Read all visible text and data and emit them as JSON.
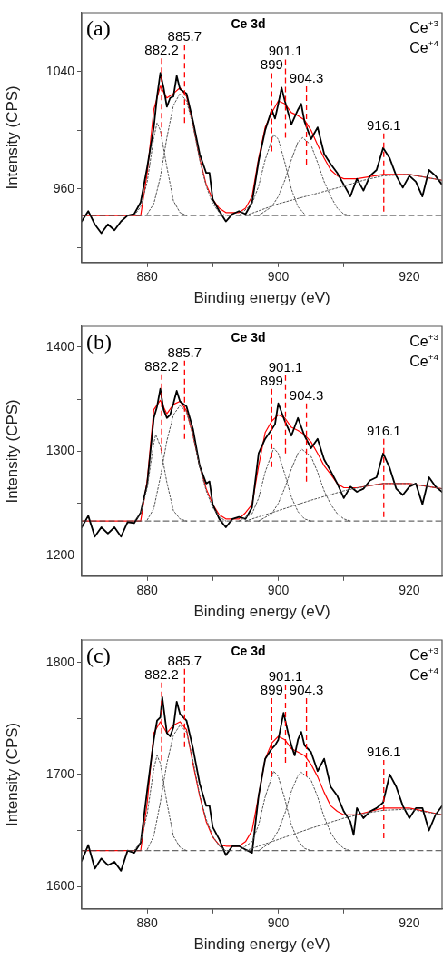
{
  "chart_data": [
    {
      "type": "line",
      "title": "Ce 3d",
      "xlabel": "Binding energy (eV)",
      "ylabel": "Intensity (CPS)",
      "annotations": [
        "(a)",
        "Ce$^{+3}$",
        "Ce$^{+4}$"
      ],
      "marker": "none",
      "xlim": [
        870,
        925
      ],
      "ylim": [
        910,
        1080
      ],
      "xticks": [
        {
          "value": 880,
          "label": "880"
        },
        {
          "value": 890,
          "label": null
        },
        {
          "value": 900,
          "label": "900"
        },
        {
          "value": 910,
          "label": null
        },
        {
          "value": 920,
          "label": "920"
        }
      ],
      "yticks": [
        {
          "value": 920,
          "label": null
        },
        960,
        {
          "value": 1000,
          "label": null
        },
        1040
      ],
      "ref_lines": [
        {
          "axis": "x",
          "value": 882.2,
          "label": "882.2",
          "color": "#ff0000",
          "line_style": "dashed"
        },
        {
          "axis": "x",
          "value": 885.7,
          "label": "885.7",
          "color": "#ff0000",
          "line_style": "dashed"
        },
        {
          "axis": "x",
          "value": 899,
          "label": "899",
          "color": "#ff0000",
          "line_style": "dashed"
        },
        {
          "axis": "x",
          "value": 901.1,
          "label": "901.1",
          "color": "#ff0000",
          "line_style": "dashed"
        },
        {
          "axis": "x",
          "value": 904.3,
          "label": "904.3",
          "color": "#ff0000",
          "line_style": "dashed"
        },
        {
          "axis": "x",
          "value": 916.1,
          "label": "916.1",
          "color": "#ff0000",
          "line_style": "dashed"
        }
      ],
      "series": [
        {
          "color": "#444444",
          "line_style": "dashed",
          "x": [
            870,
            925
          ],
          "values": [
            942,
            942
          ]
        },
        {
          "color": "#555555",
          "line_style": "dotted",
          "x": [
            878,
            879,
            880,
            881,
            881.5,
            882,
            883,
            884,
            885,
            886
          ],
          "values": [
            942,
            948,
            965,
            995,
            1005,
            1000,
            975,
            952,
            944,
            942
          ]
        },
        {
          "color": "#555555",
          "line_style": "dotted",
          "x": [
            880,
            881,
            882,
            883,
            884,
            885,
            886,
            887,
            888,
            889,
            890,
            891,
            892
          ],
          "values": [
            943,
            950,
            968,
            995,
            1017,
            1025,
            1020,
            1003,
            980,
            962,
            950,
            944,
            942
          ]
        },
        {
          "color": "#555555",
          "line_style": "dotted",
          "x": [
            894,
            896,
            897,
            898,
            899.3,
            900,
            901,
            902,
            903,
            904
          ],
          "values": [
            942,
            950,
            962,
            980,
            997,
            994,
            978,
            960,
            948,
            943
          ]
        },
        {
          "color": "#555555",
          "line_style": "dotted",
          "x": [
            897,
            899,
            900,
            901,
            902,
            903,
            903.7,
            905,
            906,
            907,
            908,
            909,
            910,
            911
          ],
          "values": [
            942,
            948,
            955,
            966,
            980,
            992,
            995,
            990,
            978,
            965,
            955,
            947,
            943,
            942
          ]
        },
        {
          "color": "#555555",
          "line_style": "dotted",
          "x": [
            895,
            900,
            905,
            910,
            913,
            916,
            920,
            925
          ],
          "values": [
            942,
            950,
            956,
            962,
            966,
            969,
            970,
            966
          ]
        },
        {
          "color": "#000000",
          "x": [
            870,
            871,
            872,
            873,
            874,
            875,
            876,
            877,
            878,
            879,
            880,
            881,
            881.5,
            882,
            882.5,
            883,
            883.5,
            884,
            884.5,
            885,
            886,
            887,
            888,
            889,
            889.5,
            890,
            891,
            892,
            893,
            894,
            895,
            896,
            897,
            898,
            899,
            899.5,
            900,
            900.5,
            901,
            902,
            903,
            903.5,
            904,
            905,
            906,
            907,
            908,
            909,
            910,
            911,
            912,
            913,
            914,
            915,
            916,
            917,
            918,
            919,
            920,
            921,
            922,
            923,
            924,
            925
          ],
          "values": [
            938,
            945,
            936,
            930,
            936,
            932,
            938,
            942,
            943,
            951,
            975,
            1002,
            1023,
            1039,
            1029,
            1016,
            1022,
            1023,
            1037,
            1028,
            1025,
            1006,
            984,
            971,
            971,
            953,
            945,
            938,
            943,
            945,
            943,
            951,
            979,
            1000,
            1014,
            1008,
            1018,
            1029,
            1020,
            1004,
            1014,
            1018,
            1006,
            994,
            1002,
            984,
            977,
            971,
            963,
            955,
            967,
            959,
            969,
            973,
            988,
            981,
            969,
            961,
            969,
            965,
            955,
            973,
            969,
            963
          ]
        },
        {
          "color": "#ff0000",
          "x": [
            870,
            879,
            880,
            881,
            882,
            883,
            884,
            885,
            886,
            887,
            888,
            889,
            890,
            891,
            892,
            894,
            895,
            896,
            897,
            898,
            899,
            900,
            901,
            902,
            903,
            904,
            905,
            906,
            907,
            908,
            909,
            910,
            912,
            916,
            920,
            925
          ],
          "values": [
            942,
            942,
            971,
            1014,
            1030,
            1022,
            1025,
            1029,
            1023,
            1004,
            981,
            963,
            953,
            947,
            944,
            944,
            947,
            955,
            981,
            1002,
            1012,
            1020,
            1018,
            1012,
            1010,
            1007,
            1000,
            990,
            981,
            973,
            969,
            967,
            967,
            970,
            970,
            966
          ]
        }
      ]
    },
    {
      "type": "line",
      "title": "Ce 3d",
      "xlabel": "Binding energy (eV)",
      "ylabel": "Intensity (CPS)",
      "annotations": [
        "(b)",
        "Ce$^{+3}$",
        "Ce$^{+4}$"
      ],
      "marker": "none",
      "xlim": [
        870,
        925
      ],
      "ylim": [
        1180,
        1420
      ],
      "xticks": [
        {
          "value": 880,
          "label": "880"
        },
        {
          "value": 890,
          "label": null
        },
        {
          "value": 900,
          "label": "900"
        },
        {
          "value": 910,
          "label": null
        },
        {
          "value": 920,
          "label": "920"
        }
      ],
      "yticks": [
        1200,
        {
          "value": 1250,
          "label": null
        },
        1300,
        {
          "value": 1350,
          "label": null
        },
        1400
      ],
      "ref_lines": [
        {
          "axis": "x",
          "value": 882.2,
          "label": "882.2",
          "color": "#ff0000",
          "line_style": "dashed"
        },
        {
          "axis": "x",
          "value": 885.7,
          "label": "885.7",
          "color": "#ff0000",
          "line_style": "dashed"
        },
        {
          "axis": "x",
          "value": 899,
          "label": "899",
          "color": "#ff0000",
          "line_style": "dashed"
        },
        {
          "axis": "x",
          "value": 901.1,
          "label": "901.1",
          "color": "#ff0000",
          "line_style": "dashed"
        },
        {
          "axis": "x",
          "value": 904.3,
          "label": "904.3",
          "color": "#ff0000",
          "line_style": "dashed"
        },
        {
          "axis": "x",
          "value": 916.1,
          "label": "916.1",
          "color": "#ff0000",
          "line_style": "dashed"
        }
      ],
      "series": [
        {
          "color": "#444444",
          "line_style": "dashed",
          "x": [
            870,
            925
          ],
          "values": [
            1233,
            1233
          ]
        },
        {
          "color": "#555555",
          "line_style": "dotted",
          "x": [
            878,
            879,
            880,
            881,
            881.3,
            882,
            883,
            884,
            885,
            886
          ],
          "values": [
            1233,
            1240,
            1265,
            1308,
            1316,
            1305,
            1270,
            1243,
            1235,
            1233
          ]
        },
        {
          "color": "#555555",
          "line_style": "dotted",
          "x": [
            880,
            881,
            882,
            883,
            884,
            885,
            886,
            887,
            888,
            889,
            890,
            891,
            892
          ],
          "values": [
            1234,
            1245,
            1275,
            1310,
            1335,
            1344,
            1338,
            1315,
            1285,
            1262,
            1246,
            1237,
            1233
          ]
        },
        {
          "color": "#555555",
          "line_style": "dotted",
          "x": [
            894,
            896,
            897,
            898,
            899.3,
            900,
            901,
            902,
            903,
            904,
            905
          ],
          "values": [
            1233,
            1240,
            1255,
            1280,
            1303,
            1298,
            1278,
            1256,
            1242,
            1235,
            1233
          ]
        },
        {
          "color": "#555555",
          "line_style": "dotted",
          "x": [
            897,
            899,
            900,
            901,
            902,
            903,
            903.6,
            905,
            906,
            907,
            908,
            909,
            910,
            911
          ],
          "values": [
            1233,
            1240,
            1250,
            1265,
            1283,
            1298,
            1302,
            1295,
            1280,
            1262,
            1249,
            1240,
            1235,
            1233
          ]
        },
        {
          "color": "#555555",
          "line_style": "dotted",
          "x": [
            895,
            900,
            905,
            910,
            913,
            916,
            920,
            925
          ],
          "values": [
            1233,
            1243,
            1253,
            1262,
            1266,
            1269,
            1269,
            1264
          ]
        },
        {
          "color": "#000000",
          "x": [
            870,
            871,
            872,
            873,
            874,
            875,
            876,
            877,
            878,
            879,
            880,
            881,
            881.5,
            882,
            882.5,
            883,
            883.5,
            884,
            884.5,
            885,
            886,
            887,
            888,
            889,
            889.5,
            890,
            891,
            892,
            893,
            894,
            895,
            896,
            897,
            898,
            899,
            899.5,
            900,
            901,
            902,
            903,
            904,
            905,
            906,
            907,
            908,
            909,
            910,
            911,
            912,
            913,
            914,
            915,
            916,
            917,
            918,
            919,
            920,
            921,
            922,
            923,
            924,
            925
          ],
          "values": [
            1227,
            1238,
            1218,
            1227,
            1221,
            1227,
            1218,
            1232,
            1231,
            1241,
            1269,
            1332,
            1343,
            1360,
            1340,
            1332,
            1335,
            1346,
            1358,
            1348,
            1343,
            1321,
            1286,
            1269,
            1271,
            1249,
            1235,
            1227,
            1235,
            1237,
            1235,
            1246,
            1298,
            1312,
            1321,
            1326,
            1346,
            1329,
            1315,
            1332,
            1315,
            1303,
            1312,
            1292,
            1281,
            1269,
            1255,
            1266,
            1261,
            1264,
            1272,
            1275,
            1298,
            1284,
            1264,
            1258,
            1266,
            1269,
            1249,
            1275,
            1266,
            1261
          ]
        },
        {
          "color": "#ff0000",
          "x": [
            870,
            879,
            880,
            881,
            882,
            883,
            884,
            885,
            886,
            887,
            888,
            889,
            890,
            891,
            892,
            894,
            895,
            896,
            897,
            898,
            899,
            900,
            901,
            902,
            903,
            904,
            905,
            906,
            907,
            908,
            909,
            910,
            912,
            916,
            920,
            925
          ],
          "values": [
            1233,
            1233,
            1272,
            1340,
            1349,
            1336,
            1345,
            1348,
            1339,
            1315,
            1286,
            1264,
            1249,
            1239,
            1235,
            1235,
            1241,
            1249,
            1286,
            1318,
            1329,
            1335,
            1332,
            1323,
            1320,
            1316,
            1309,
            1298,
            1286,
            1278,
            1269,
            1265,
            1265,
            1269,
            1269,
            1264
          ]
        }
      ]
    },
    {
      "type": "line",
      "title": "Ce 3d",
      "xlabel": "Binding energy (eV)",
      "ylabel": "Intensity (CPS)",
      "annotations": [
        "(c)",
        "Ce$^{+3}$",
        "Ce$^{+4}$"
      ],
      "marker": "none",
      "xlim": [
        870,
        925
      ],
      "ylim": [
        1580,
        1820
      ],
      "xticks": [
        {
          "value": 880,
          "label": "880"
        },
        {
          "value": 890,
          "label": null
        },
        {
          "value": 900,
          "label": "900"
        },
        {
          "value": 910,
          "label": null
        },
        {
          "value": 920,
          "label": "920"
        }
      ],
      "yticks": [
        1600,
        {
          "value": 1650,
          "label": null
        },
        1700,
        {
          "value": 1750,
          "label": null
        },
        1800
      ],
      "ref_lines": [
        {
          "axis": "x",
          "value": 882.2,
          "label": "882.2",
          "color": "#ff0000",
          "line_style": "dashed"
        },
        {
          "axis": "x",
          "value": 885.7,
          "label": "885.7",
          "color": "#ff0000",
          "line_style": "dashed"
        },
        {
          "axis": "x",
          "value": 899,
          "label": "899",
          "color": "#ff0000",
          "line_style": "dashed"
        },
        {
          "axis": "x",
          "value": 901.1,
          "label": "901.1",
          "color": "#ff0000",
          "line_style": "dashed"
        },
        {
          "axis": "x",
          "value": 904.3,
          "label": "904.3",
          "color": "#ff0000",
          "line_style": "dashed"
        },
        {
          "axis": "x",
          "value": 916.1,
          "label": "916.1",
          "color": "#ff0000",
          "line_style": "dashed"
        }
      ],
      "series": [
        {
          "color": "#444444",
          "line_style": "dashed",
          "x": [
            870,
            925
          ],
          "values": [
            1632,
            1632
          ]
        },
        {
          "color": "#555555",
          "line_style": "dotted",
          "x": [
            878,
            879,
            880,
            881,
            881.5,
            882,
            883,
            884,
            885,
            886
          ],
          "values": [
            1632,
            1640,
            1665,
            1705,
            1717,
            1710,
            1675,
            1645,
            1635,
            1632
          ]
        },
        {
          "color": "#555555",
          "line_style": "dotted",
          "x": [
            880,
            881,
            882,
            883,
            884,
            885,
            886,
            887,
            888,
            889,
            890,
            891,
            892
          ],
          "values": [
            1633,
            1645,
            1675,
            1710,
            1735,
            1744,
            1738,
            1712,
            1682,
            1660,
            1645,
            1636,
            1632
          ]
        },
        {
          "color": "#555555",
          "line_style": "dotted",
          "x": [
            894,
            896,
            897,
            898,
            899.3,
            900,
            901,
            902,
            903,
            904,
            905
          ],
          "values": [
            1632,
            1640,
            1655,
            1680,
            1703,
            1698,
            1678,
            1655,
            1641,
            1634,
            1632
          ]
        },
        {
          "color": "#555555",
          "line_style": "dotted",
          "x": [
            897,
            899,
            900,
            901,
            902,
            903,
            903.5,
            905,
            906,
            907,
            908,
            909,
            910,
            911
          ],
          "values": [
            1632,
            1640,
            1650,
            1665,
            1685,
            1699,
            1702,
            1695,
            1680,
            1662,
            1648,
            1639,
            1634,
            1632
          ]
        },
        {
          "color": "#555555",
          "line_style": "dotted",
          "x": [
            895,
            900,
            905,
            910,
            913,
            916,
            920,
            925
          ],
          "values": [
            1632,
            1642,
            1652,
            1661,
            1665,
            1668,
            1669,
            1664
          ]
        },
        {
          "color": "#000000",
          "x": [
            870,
            871,
            872,
            873,
            874,
            875,
            876,
            877,
            878,
            879,
            880,
            881,
            881.5,
            882,
            882.3,
            883,
            883.5,
            884,
            884.5,
            885,
            886,
            887,
            888,
            889,
            889.5,
            890,
            891,
            892,
            893,
            894,
            895,
            896,
            897,
            898,
            899,
            899.5,
            900,
            900.8,
            901.5,
            902,
            902.5,
            903,
            903.5,
            904,
            905,
            906,
            907,
            908,
            909,
            910,
            911,
            911.5,
            912,
            913,
            914,
            915,
            916,
            917,
            918,
            919,
            920,
            921,
            922,
            923,
            924,
            925
          ],
          "values": [
            1623,
            1637,
            1616,
            1625,
            1619,
            1622,
            1614,
            1632,
            1630,
            1639,
            1686,
            1731,
            1748,
            1751,
            1769,
            1737,
            1734,
            1742,
            1765,
            1754,
            1748,
            1723,
            1692,
            1672,
            1672,
            1653,
            1642,
            1628,
            1636,
            1636,
            1633,
            1630,
            1681,
            1714,
            1723,
            1726,
            1731,
            1755,
            1737,
            1726,
            1717,
            1731,
            1738,
            1726,
            1720,
            1703,
            1714,
            1689,
            1681,
            1667,
            1658,
            1646,
            1670,
            1661,
            1667,
            1670,
            1675,
            1700,
            1689,
            1672,
            1661,
            1670,
            1670,
            1650,
            1664,
            1672
          ]
        },
        {
          "color": "#ff0000",
          "x": [
            870,
            879,
            880,
            881,
            882,
            883,
            884,
            885,
            886,
            887,
            888,
            889,
            890,
            891,
            892,
            894,
            895,
            896,
            897,
            898,
            899,
            900,
            901,
            902,
            903,
            904,
            905,
            906,
            907,
            908,
            909,
            910,
            912,
            916,
            920,
            925
          ],
          "values": [
            1632,
            1632,
            1675,
            1737,
            1747,
            1737,
            1744,
            1747,
            1740,
            1709,
            1681,
            1658,
            1644,
            1637,
            1636,
            1636,
            1640,
            1650,
            1681,
            1714,
            1728,
            1734,
            1731,
            1723,
            1720,
            1717,
            1709,
            1698,
            1684,
            1672,
            1667,
            1664,
            1664,
            1670,
            1670,
            1664
          ]
        }
      ]
    }
  ]
}
